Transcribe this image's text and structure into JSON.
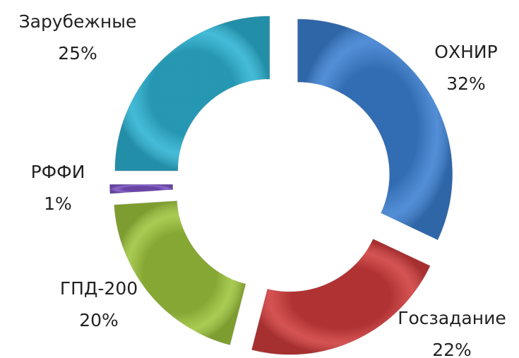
{
  "chart_data": {
    "type": "donut",
    "categories": [
      "ОХНИР",
      "Госзадание",
      "ГПД-200",
      "РФФИ",
      "Зарубежные"
    ],
    "values": [
      32,
      22,
      20,
      1,
      25
    ],
    "value_labels": [
      "32%",
      "22%",
      "20%",
      "1%",
      "25%"
    ],
    "colors": [
      "#3b7fd1",
      "#cf3b3b",
      "#9dc43c",
      "#7a52c2",
      "#2cb2d2"
    ]
  }
}
